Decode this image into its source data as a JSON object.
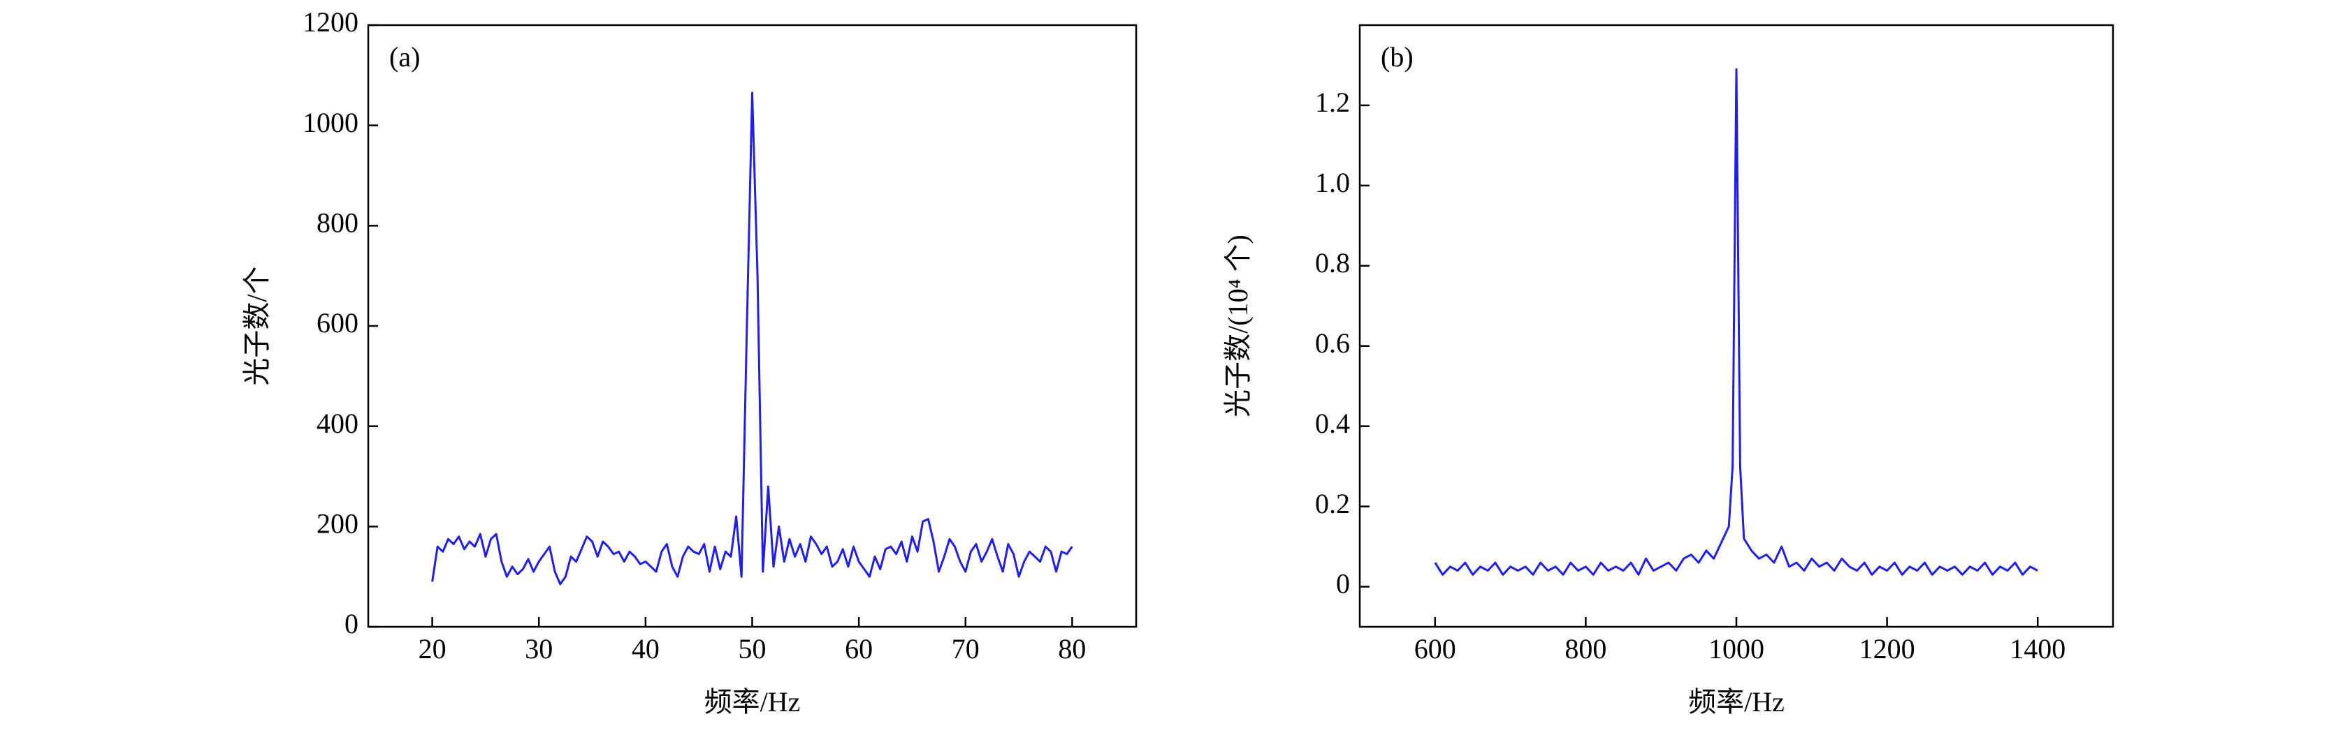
{
  "chart_data": [
    {
      "type": "line",
      "panel_label": "(a)",
      "x_label": "频率/Hz",
      "y_label": "光子数/个",
      "xlim": [
        14,
        86
      ],
      "ylim": [
        0,
        1200
      ],
      "xticks": [
        20,
        30,
        40,
        50,
        60,
        70,
        80
      ],
      "yticks": [
        0,
        200,
        400,
        600,
        800,
        1000,
        1200
      ],
      "x": [
        20,
        20.5,
        21,
        21.5,
        22,
        22.5,
        23,
        23.5,
        24,
        24.5,
        25,
        25.5,
        26,
        26.5,
        27,
        27.5,
        28,
        28.5,
        29,
        29.5,
        30,
        30.5,
        31,
        31.5,
        32,
        32.5,
        33,
        33.5,
        34,
        34.5,
        35,
        35.5,
        36,
        36.5,
        37,
        37.5,
        38,
        38.5,
        39,
        39.5,
        40,
        40.5,
        41,
        41.5,
        42,
        42.5,
        43,
        43.5,
        44,
        44.5,
        45,
        45.5,
        46,
        46.5,
        47,
        47.5,
        48,
        48.5,
        49,
        49.5,
        50,
        50.5,
        51,
        51.5,
        52,
        52.5,
        53,
        53.5,
        54,
        54.5,
        55,
        55.5,
        56,
        56.5,
        57,
        57.5,
        58,
        58.5,
        59,
        59.5,
        60,
        60.5,
        61,
        61.5,
        62,
        62.5,
        63,
        63.5,
        64,
        64.5,
        65,
        65.5,
        66,
        66.5,
        67,
        67.5,
        68,
        68.5,
        69,
        69.5,
        70,
        70.5,
        71,
        71.5,
        72,
        72.5,
        73,
        73.5,
        74,
        74.5,
        75,
        75.5,
        76,
        76.5,
        77,
        77.5,
        78,
        78.5,
        79,
        79.5,
        80
      ],
      "series": [
        {
          "name": null,
          "color": "#1f1fe8",
          "values": [
            90,
            160,
            150,
            175,
            165,
            180,
            155,
            170,
            160,
            185,
            140,
            175,
            185,
            130,
            100,
            120,
            105,
            115,
            135,
            110,
            130,
            145,
            160,
            110,
            85,
            100,
            140,
            130,
            155,
            180,
            170,
            140,
            170,
            160,
            145,
            150,
            130,
            150,
            140,
            125,
            130,
            120,
            110,
            150,
            165,
            120,
            100,
            140,
            160,
            150,
            145,
            165,
            110,
            160,
            115,
            150,
            140,
            220,
            100,
            600,
            1065,
            700,
            110,
            280,
            120,
            200,
            130,
            175,
            140,
            165,
            130,
            180,
            165,
            145,
            160,
            120,
            130,
            155,
            120,
            160,
            130,
            115,
            100,
            140,
            115,
            155,
            160,
            145,
            170,
            130,
            180,
            150,
            210,
            215,
            170,
            110,
            140,
            175,
            160,
            130,
            110,
            150,
            165,
            130,
            150,
            175,
            140,
            110,
            165,
            145,
            100,
            130,
            150,
            140,
            130,
            160,
            150,
            110,
            150,
            145,
            160
          ]
        }
      ]
    },
    {
      "type": "line",
      "panel_label": "(b)",
      "x_label": "频率/Hz",
      "y_label": "光子数/(10⁴ 个)",
      "xlim": [
        500,
        1500
      ],
      "ylim": [
        -0.1,
        1.4
      ],
      "xticks": [
        600,
        800,
        1000,
        1200,
        1400
      ],
      "yticks": [
        0,
        0.2,
        0.4,
        0.6,
        0.8,
        {
          "value": 1,
          "label": "1.0"
        },
        1.2
      ],
      "x": [
        600,
        610,
        620,
        630,
        640,
        650,
        660,
        670,
        680,
        690,
        700,
        710,
        720,
        730,
        740,
        750,
        760,
        770,
        780,
        790,
        800,
        810,
        820,
        830,
        840,
        850,
        860,
        870,
        880,
        890,
        900,
        910,
        920,
        930,
        940,
        950,
        960,
        970,
        980,
        990,
        995,
        1000,
        1005,
        1010,
        1020,
        1030,
        1040,
        1050,
        1060,
        1070,
        1080,
        1090,
        1100,
        1110,
        1120,
        1130,
        1140,
        1150,
        1160,
        1170,
        1180,
        1190,
        1200,
        1210,
        1220,
        1230,
        1240,
        1250,
        1260,
        1270,
        1280,
        1290,
        1300,
        1310,
        1320,
        1330,
        1340,
        1350,
        1360,
        1370,
        1380,
        1390,
        1400
      ],
      "series": [
        {
          "name": null,
          "color": "#1f1fe8",
          "values": [
            0.06,
            0.03,
            0.05,
            0.04,
            0.06,
            0.03,
            0.05,
            0.04,
            0.06,
            0.03,
            0.05,
            0.04,
            0.05,
            0.03,
            0.06,
            0.04,
            0.05,
            0.03,
            0.06,
            0.04,
            0.05,
            0.03,
            0.06,
            0.04,
            0.05,
            0.04,
            0.06,
            0.03,
            0.07,
            0.04,
            0.05,
            0.06,
            0.04,
            0.07,
            0.08,
            0.06,
            0.09,
            0.07,
            0.11,
            0.15,
            0.3,
            1.29,
            0.3,
            0.12,
            0.09,
            0.07,
            0.08,
            0.06,
            0.1,
            0.05,
            0.06,
            0.04,
            0.07,
            0.05,
            0.06,
            0.04,
            0.07,
            0.05,
            0.04,
            0.06,
            0.03,
            0.05,
            0.04,
            0.06,
            0.03,
            0.05,
            0.04,
            0.06,
            0.03,
            0.05,
            0.04,
            0.05,
            0.03,
            0.05,
            0.04,
            0.06,
            0.03,
            0.05,
            0.04,
            0.06,
            0.03,
            0.05,
            0.04
          ]
        }
      ]
    }
  ]
}
